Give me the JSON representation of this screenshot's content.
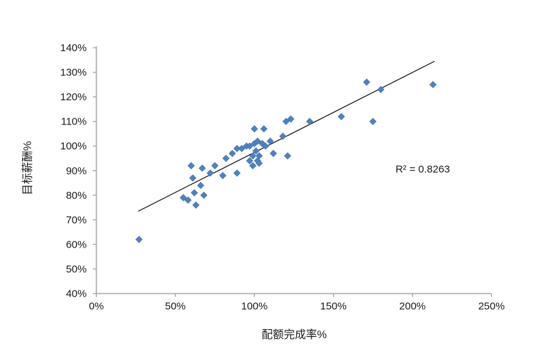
{
  "chart": {
    "x_axis_title": "配额完成率%",
    "y_axis_title": "目标薪酬%",
    "annotation": "R² = 0.8263"
  },
  "chart_data": {
    "type": "scatter",
    "title": "",
    "xlabel": "配额完成率%",
    "ylabel": "目标薪酬%",
    "xlim": [
      0,
      250
    ],
    "ylim": [
      40,
      140
    ],
    "x_tick_values": [
      0,
      50,
      100,
      150,
      200,
      250
    ],
    "x_tick_labels": [
      "0%",
      "50%",
      "100%",
      "150%",
      "200%",
      "250%"
    ],
    "y_tick_values": [
      40,
      50,
      60,
      70,
      80,
      90,
      100,
      110,
      120,
      130,
      140
    ],
    "y_tick_labels": [
      "40%",
      "50%",
      "60%",
      "70%",
      "80%",
      "90%",
      "100%",
      "110%",
      "120%",
      "130%",
      "140%"
    ],
    "grid": false,
    "legend": null,
    "marker": {
      "shape": "diamond",
      "size": 9.6,
      "color": "#4F81BD",
      "edge_color": "#4173AE"
    },
    "axis_color": "#A6A6A6",
    "text_color": "#1a1a1a",
    "points": [
      [
        27,
        62
      ],
      [
        55,
        79
      ],
      [
        58,
        78
      ],
      [
        60,
        92
      ],
      [
        61,
        87
      ],
      [
        62,
        81
      ],
      [
        63,
        76
      ],
      [
        66,
        84
      ],
      [
        67,
        91
      ],
      [
        68,
        80
      ],
      [
        72,
        89
      ],
      [
        75,
        92
      ],
      [
        80,
        88
      ],
      [
        82,
        95
      ],
      [
        86,
        97
      ],
      [
        89,
        89
      ],
      [
        89,
        99
      ],
      [
        92,
        99
      ],
      [
        95,
        100
      ],
      [
        97,
        94
      ],
      [
        97,
        100
      ],
      [
        99,
        92
      ],
      [
        99,
        96
      ],
      [
        100,
        101
      ],
      [
        100,
        107
      ],
      [
        101,
        98
      ],
      [
        102,
        94
      ],
      [
        102,
        102
      ],
      [
        103,
        93
      ],
      [
        103,
        96
      ],
      [
        105,
        101
      ],
      [
        106,
        107
      ],
      [
        107,
        100
      ],
      [
        110,
        102
      ],
      [
        112,
        97
      ],
      [
        118,
        104
      ],
      [
        120,
        110
      ],
      [
        121,
        96
      ],
      [
        123,
        111
      ],
      [
        135,
        110
      ],
      [
        155,
        112
      ],
      [
        171,
        126
      ],
      [
        175,
        110
      ],
      [
        180,
        123
      ],
      [
        213,
        125
      ]
    ],
    "trendline": {
      "x1": 26.5,
      "y1": 73.5,
      "x2": 214,
      "y2": 134.5,
      "color": "#1a1a1a"
    },
    "annotation": {
      "text": "R² = 0.8263",
      "x": 207,
      "y": 90
    }
  }
}
